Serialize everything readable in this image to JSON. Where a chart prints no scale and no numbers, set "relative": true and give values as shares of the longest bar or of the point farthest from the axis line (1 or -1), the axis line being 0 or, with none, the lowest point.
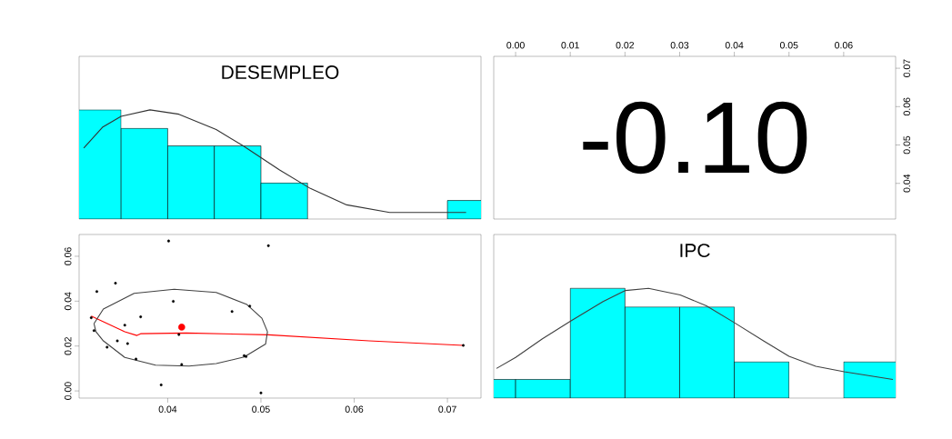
{
  "chart_data": [
    {
      "type": "histogram",
      "title": "DESEMPLEO",
      "relative": true,
      "xlim": [
        0.0305,
        0.0736
      ],
      "tick_labels": false,
      "series": [
        {
          "color": "#00ffff",
          "bins": [
            0.03,
            0.035,
            0.04,
            0.045,
            0.05,
            0.055,
            0.06,
            0.065,
            0.07,
            0.075
          ],
          "values": [
            1,
            0.83,
            0.67,
            0.67,
            0.33,
            0,
            0,
            0,
            0.17
          ]
        },
        {
          "type": "line",
          "color": "#333333",
          "x": [
            0.031,
            0.033,
            0.035,
            0.0381,
            0.0412,
            0.0452,
            0.0481,
            0.052,
            0.0553,
            0.0592,
            0.0638,
            0.0677,
            0.072
          ],
          "values": [
            0.65,
            0.84,
            0.94,
            1.0,
            0.96,
            0.82,
            0.67,
            0.45,
            0.28,
            0.13,
            0.06,
            0.06,
            0.06
          ]
        }
      ]
    },
    {
      "type": "scatter",
      "annotations": [
        "-0.10"
      ],
      "xlim": [
        -0.004,
        0.0695
      ],
      "xticks": [
        {
          "value": 0,
          "label": "0.00"
        },
        0.01,
        0.02,
        0.03,
        0.04,
        0.05,
        0.06
      ],
      "ylim": [
        0.0307,
        0.0731
      ],
      "yticks": [
        0.04,
        0.05,
        0.06,
        0.07
      ]
    },
    {
      "type": "scatter",
      "xlim": [
        0.0305,
        0.0736
      ],
      "ylim": [
        -0.0032,
        0.0697
      ],
      "xticks": [
        0.04,
        0.05,
        0.06,
        0.07
      ],
      "yticks": [
        {
          "value": 0,
          "label": "0.00"
        },
        0.02,
        0.04,
        0.06
      ],
      "series": [
        {
          "marker": "circle",
          "color": "#000000",
          "x": [
            0.0401,
            0.0508,
            0.0344,
            0.0324,
            0.0406,
            0.0488,
            0.0469,
            0.0371,
            0.0318,
            0.0354,
            0.0321,
            0.0412,
            0.0346,
            0.0357,
            0.0335,
            0.0366,
            0.0482,
            0.0484,
            0.0415,
            0.0393,
            0.05,
            0.0717
          ],
          "values": [
            0.0668,
            0.0647,
            0.048,
            0.0443,
            0.0399,
            0.0378,
            0.0354,
            0.033,
            0.0326,
            0.0293,
            0.0269,
            0.0251,
            0.0223,
            0.0211,
            0.0195,
            0.0142,
            0.0157,
            0.0153,
            0.0118,
            0.0027,
            -0.0009,
            0.0203
          ]
        },
        {
          "type": "line",
          "color": "#ff0000",
          "x": [
            0.0318,
            0.0354,
            0.0367,
            0.0371,
            0.042,
            0.0508,
            0.0616,
            0.0717
          ],
          "values": [
            0.0334,
            0.0264,
            0.0247,
            0.0255,
            0.0258,
            0.025,
            0.0223,
            0.0203
          ]
        },
        {
          "type": "line",
          "color": "#404040",
          "x": [
            0.0321,
            0.0331,
            0.0364,
            0.0407,
            0.0452,
            0.0485,
            0.0501,
            0.0507
          ],
          "values": [
            0.03,
            0.0365,
            0.0435,
            0.0453,
            0.0439,
            0.0385,
            0.0324,
            0.0264
          ]
        },
        {
          "type": "line",
          "color": "#404040",
          "x": [
            0.0507,
            0.0505,
            0.0482,
            0.0452,
            0.0423,
            0.0387,
            0.0354,
            0.0331,
            0.0323,
            0.0321
          ],
          "values": [
            0.0264,
            0.0209,
            0.0151,
            0.0122,
            0.0111,
            0.0115,
            0.0149,
            0.0223,
            0.0264,
            0.03
          ]
        },
        {
          "marker": "circle",
          "color": "#ff0000",
          "x": [
            0.0415
          ],
          "values": [
            0.0284
          ]
        }
      ]
    },
    {
      "type": "histogram",
      "title": "IPC",
      "relative": true,
      "xlim": [
        -0.004,
        0.0695
      ],
      "tick_labels": false,
      "series": [
        {
          "color": "#00ffff",
          "bins": [
            -0.01,
            0.0,
            0.01,
            0.02,
            0.03,
            0.04,
            0.05,
            0.06,
            0.07
          ],
          "values": [
            0.17,
            0.17,
            1,
            0.83,
            0.83,
            0.33,
            0,
            0.33
          ]
        },
        {
          "type": "line",
          "color": "#404040",
          "x": [
            -0.0035,
            0.0,
            0.0049,
            0.01,
            0.016,
            0.0201,
            0.0243,
            0.0301,
            0.0349,
            0.0399,
            0.0454,
            0.05,
            0.0549,
            0.0601,
            0.069
          ],
          "values": [
            0.27,
            0.37,
            0.54,
            0.7,
            0.88,
            0.98,
            1.0,
            0.94,
            0.84,
            0.69,
            0.52,
            0.38,
            0.29,
            0.24,
            0.17
          ]
        }
      ]
    }
  ]
}
